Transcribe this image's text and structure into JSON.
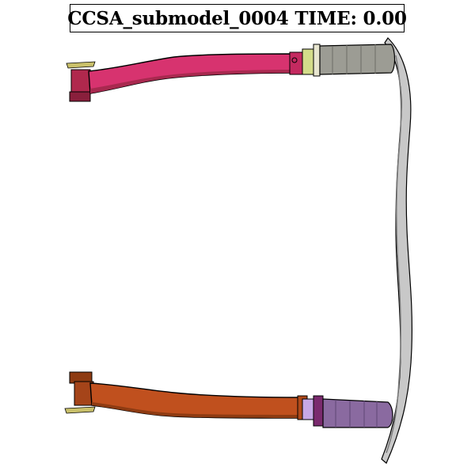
{
  "viewer": {
    "title": "CCSA_submodel_0004 TIME: 0.00"
  },
  "colors": {
    "upper_rail": "#d7336f",
    "upper_rail_dark": "#a8294f",
    "upper_bracket": "#b0284d",
    "lower_rail": "#c0501e",
    "lower_rail_dark": "#8e3b12",
    "lower_bracket": "#a54419",
    "upper_crush_can": "#9c9c94",
    "lower_crush_can": "#8a6aa0",
    "upper_mount_plate": "#d3dc8a",
    "lower_mount_plate": "#c7a8e6",
    "lower_collar": "#7a2a6e",
    "bumper_beam": "#c8c8c8",
    "outline": "#000000"
  }
}
